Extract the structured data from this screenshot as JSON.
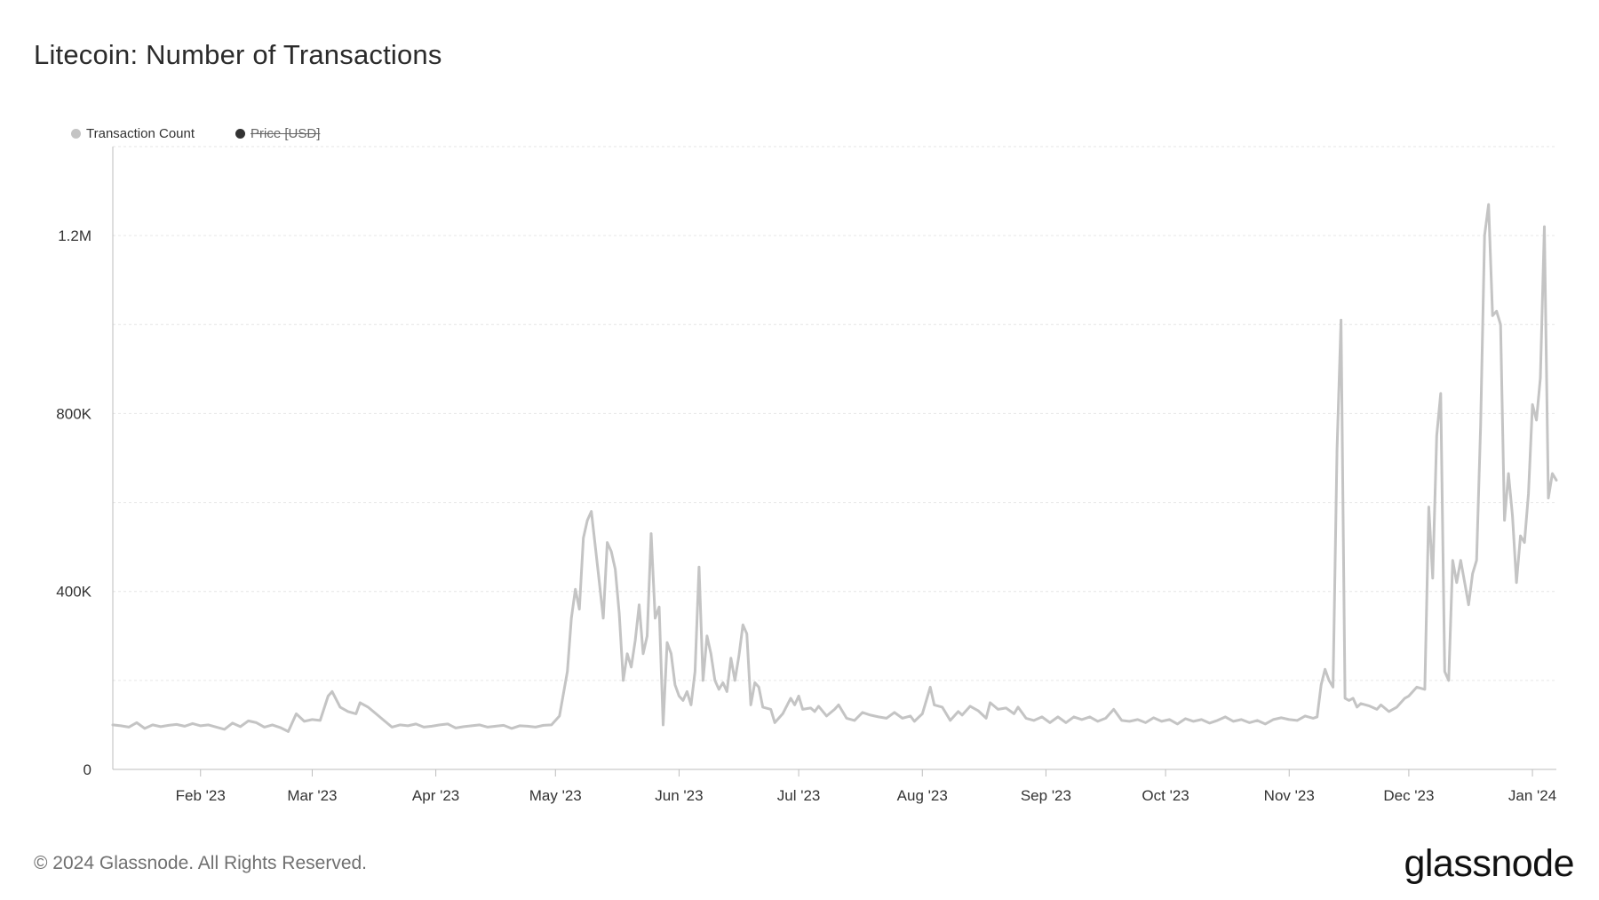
{
  "title": "Litecoin: Number of Transactions",
  "footer": "© 2024 Glassnode. All Rights Reserved.",
  "brand": "glassnode",
  "legend": [
    {
      "label": "Transaction Count",
      "color": "#c4c4c4",
      "active": true
    },
    {
      "label": "Price [USD]",
      "color": "#333333",
      "active": false
    }
  ],
  "chart_data": {
    "type": "line",
    "title": "Litecoin: Number of Transactions",
    "xlabel": "",
    "ylabel": "",
    "x_range": [
      "2023-01-10",
      "2024-01-07"
    ],
    "ylim": [
      0,
      1400000
    ],
    "y_ticks": [
      {
        "value": 0,
        "label": "0"
      },
      {
        "value": 400000,
        "label": "400K"
      },
      {
        "value": 800000,
        "label": "800K"
      },
      {
        "value": 1200000,
        "label": "1.2M"
      }
    ],
    "grid_values": [
      0,
      200000,
      400000,
      600000,
      800000,
      1000000,
      1200000,
      1400000
    ],
    "x_ticks": [
      {
        "date": "2023-02-01",
        "label": "Feb '23"
      },
      {
        "date": "2023-03-01",
        "label": "Mar '23"
      },
      {
        "date": "2023-04-01",
        "label": "Apr '23"
      },
      {
        "date": "2023-05-01",
        "label": "May '23"
      },
      {
        "date": "2023-06-01",
        "label": "Jun '23"
      },
      {
        "date": "2023-07-01",
        "label": "Jul '23"
      },
      {
        "date": "2023-08-01",
        "label": "Aug '23"
      },
      {
        "date": "2023-09-01",
        "label": "Sep '23"
      },
      {
        "date": "2023-10-01",
        "label": "Oct '23"
      },
      {
        "date": "2023-11-01",
        "label": "Nov '23"
      },
      {
        "date": "2023-12-01",
        "label": "Dec '23"
      },
      {
        "date": "2024-01-01",
        "label": "Jan '24"
      }
    ],
    "grid": true,
    "series": [
      {
        "name": "Transaction Count",
        "color": "#c4c4c4",
        "points": [
          [
            "2023-01-10",
            100000
          ],
          [
            "2023-01-12",
            98000
          ],
          [
            "2023-01-14",
            95000
          ],
          [
            "2023-01-16",
            105000
          ],
          [
            "2023-01-18",
            92000
          ],
          [
            "2023-01-20",
            100000
          ],
          [
            "2023-01-22",
            96000
          ],
          [
            "2023-01-24",
            99000
          ],
          [
            "2023-01-26",
            101000
          ],
          [
            "2023-01-28",
            97000
          ],
          [
            "2023-01-30",
            103000
          ],
          [
            "2023-02-01",
            98000
          ],
          [
            "2023-02-03",
            100000
          ],
          [
            "2023-02-05",
            95000
          ],
          [
            "2023-02-07",
            90000
          ],
          [
            "2023-02-09",
            104000
          ],
          [
            "2023-02-11",
            96000
          ],
          [
            "2023-02-13",
            109000
          ],
          [
            "2023-02-15",
            105000
          ],
          [
            "2023-02-17",
            95000
          ],
          [
            "2023-02-19",
            100000
          ],
          [
            "2023-02-21",
            94000
          ],
          [
            "2023-02-23",
            85000
          ],
          [
            "2023-02-25",
            125000
          ],
          [
            "2023-02-27",
            108000
          ],
          [
            "2023-03-01",
            112000
          ],
          [
            "2023-03-03",
            110000
          ],
          [
            "2023-03-05",
            165000
          ],
          [
            "2023-03-06",
            175000
          ],
          [
            "2023-03-08",
            140000
          ],
          [
            "2023-03-10",
            130000
          ],
          [
            "2023-03-12",
            125000
          ],
          [
            "2023-03-13",
            150000
          ],
          [
            "2023-03-15",
            140000
          ],
          [
            "2023-03-17",
            125000
          ],
          [
            "2023-03-19",
            110000
          ],
          [
            "2023-03-21",
            95000
          ],
          [
            "2023-03-23",
            100000
          ],
          [
            "2023-03-25",
            98000
          ],
          [
            "2023-03-27",
            102000
          ],
          [
            "2023-03-29",
            95000
          ],
          [
            "2023-03-31",
            97000
          ],
          [
            "2023-04-02",
            100000
          ],
          [
            "2023-04-04",
            102000
          ],
          [
            "2023-04-06",
            93000
          ],
          [
            "2023-04-08",
            96000
          ],
          [
            "2023-04-10",
            98000
          ],
          [
            "2023-04-12",
            100000
          ],
          [
            "2023-04-14",
            95000
          ],
          [
            "2023-04-16",
            97000
          ],
          [
            "2023-04-18",
            99000
          ],
          [
            "2023-04-20",
            92000
          ],
          [
            "2023-04-22",
            98000
          ],
          [
            "2023-04-24",
            97000
          ],
          [
            "2023-04-26",
            95000
          ],
          [
            "2023-04-28",
            99000
          ],
          [
            "2023-04-30",
            100000
          ],
          [
            "2023-05-02",
            120000
          ],
          [
            "2023-05-04",
            220000
          ],
          [
            "2023-05-05",
            340000
          ],
          [
            "2023-05-06",
            405000
          ],
          [
            "2023-05-07",
            360000
          ],
          [
            "2023-05-08",
            520000
          ],
          [
            "2023-05-09",
            560000
          ],
          [
            "2023-05-10",
            580000
          ],
          [
            "2023-05-11",
            500000
          ],
          [
            "2023-05-12",
            420000
          ],
          [
            "2023-05-13",
            340000
          ],
          [
            "2023-05-14",
            510000
          ],
          [
            "2023-05-15",
            490000
          ],
          [
            "2023-05-16",
            450000
          ],
          [
            "2023-05-17",
            350000
          ],
          [
            "2023-05-18",
            200000
          ],
          [
            "2023-05-19",
            260000
          ],
          [
            "2023-05-20",
            230000
          ],
          [
            "2023-05-21",
            290000
          ],
          [
            "2023-05-22",
            370000
          ],
          [
            "2023-05-23",
            260000
          ],
          [
            "2023-05-24",
            300000
          ],
          [
            "2023-05-25",
            530000
          ],
          [
            "2023-05-26",
            340000
          ],
          [
            "2023-05-27",
            365000
          ],
          [
            "2023-05-28",
            100000
          ],
          [
            "2023-05-29",
            285000
          ],
          [
            "2023-05-30",
            260000
          ],
          [
            "2023-05-31",
            190000
          ],
          [
            "2023-06-01",
            165000
          ],
          [
            "2023-06-02",
            155000
          ],
          [
            "2023-06-03",
            175000
          ],
          [
            "2023-06-04",
            145000
          ],
          [
            "2023-06-05",
            220000
          ],
          [
            "2023-06-06",
            455000
          ],
          [
            "2023-06-07",
            200000
          ],
          [
            "2023-06-08",
            300000
          ],
          [
            "2023-06-09",
            260000
          ],
          [
            "2023-06-10",
            200000
          ],
          [
            "2023-06-11",
            180000
          ],
          [
            "2023-06-12",
            195000
          ],
          [
            "2023-06-13",
            175000
          ],
          [
            "2023-06-14",
            250000
          ],
          [
            "2023-06-15",
            200000
          ],
          [
            "2023-06-16",
            255000
          ],
          [
            "2023-06-17",
            325000
          ],
          [
            "2023-06-18",
            305000
          ],
          [
            "2023-06-19",
            145000
          ],
          [
            "2023-06-20",
            195000
          ],
          [
            "2023-06-21",
            185000
          ],
          [
            "2023-06-22",
            140000
          ],
          [
            "2023-06-24",
            135000
          ],
          [
            "2023-06-25",
            105000
          ],
          [
            "2023-06-27",
            125000
          ],
          [
            "2023-06-29",
            160000
          ],
          [
            "2023-06-30",
            145000
          ],
          [
            "2023-07-01",
            165000
          ],
          [
            "2023-07-02",
            135000
          ],
          [
            "2023-07-04",
            138000
          ],
          [
            "2023-07-05",
            130000
          ],
          [
            "2023-07-06",
            142000
          ],
          [
            "2023-07-08",
            120000
          ],
          [
            "2023-07-10",
            135000
          ],
          [
            "2023-07-11",
            145000
          ],
          [
            "2023-07-13",
            115000
          ],
          [
            "2023-07-15",
            110000
          ],
          [
            "2023-07-17",
            128000
          ],
          [
            "2023-07-19",
            122000
          ],
          [
            "2023-07-21",
            118000
          ],
          [
            "2023-07-23",
            115000
          ],
          [
            "2023-07-25",
            128000
          ],
          [
            "2023-07-27",
            115000
          ],
          [
            "2023-07-29",
            120000
          ],
          [
            "2023-07-30",
            108000
          ],
          [
            "2023-08-01",
            125000
          ],
          [
            "2023-08-03",
            185000
          ],
          [
            "2023-08-04",
            145000
          ],
          [
            "2023-08-06",
            140000
          ],
          [
            "2023-08-08",
            110000
          ],
          [
            "2023-08-10",
            130000
          ],
          [
            "2023-08-11",
            122000
          ],
          [
            "2023-08-13",
            142000
          ],
          [
            "2023-08-15",
            132000
          ],
          [
            "2023-08-17",
            115000
          ],
          [
            "2023-08-18",
            150000
          ],
          [
            "2023-08-20",
            135000
          ],
          [
            "2023-08-22",
            138000
          ],
          [
            "2023-08-24",
            125000
          ],
          [
            "2023-08-25",
            140000
          ],
          [
            "2023-08-27",
            115000
          ],
          [
            "2023-08-29",
            110000
          ],
          [
            "2023-08-31",
            118000
          ],
          [
            "2023-09-02",
            105000
          ],
          [
            "2023-09-04",
            118000
          ],
          [
            "2023-09-06",
            105000
          ],
          [
            "2023-09-08",
            118000
          ],
          [
            "2023-09-10",
            112000
          ],
          [
            "2023-09-12",
            118000
          ],
          [
            "2023-09-14",
            108000
          ],
          [
            "2023-09-16",
            115000
          ],
          [
            "2023-09-18",
            135000
          ],
          [
            "2023-09-20",
            110000
          ],
          [
            "2023-09-22",
            108000
          ],
          [
            "2023-09-24",
            112000
          ],
          [
            "2023-09-26",
            105000
          ],
          [
            "2023-09-28",
            116000
          ],
          [
            "2023-09-30",
            108000
          ],
          [
            "2023-10-02",
            112000
          ],
          [
            "2023-10-04",
            102000
          ],
          [
            "2023-10-06",
            114000
          ],
          [
            "2023-10-08",
            108000
          ],
          [
            "2023-10-10",
            112000
          ],
          [
            "2023-10-12",
            104000
          ],
          [
            "2023-10-14",
            110000
          ],
          [
            "2023-10-16",
            118000
          ],
          [
            "2023-10-18",
            108000
          ],
          [
            "2023-10-20",
            112000
          ],
          [
            "2023-10-22",
            105000
          ],
          [
            "2023-10-24",
            110000
          ],
          [
            "2023-10-26",
            102000
          ],
          [
            "2023-10-28",
            112000
          ],
          [
            "2023-10-30",
            116000
          ],
          [
            "2023-11-01",
            112000
          ],
          [
            "2023-11-03",
            110000
          ],
          [
            "2023-11-05",
            120000
          ],
          [
            "2023-11-07",
            115000
          ],
          [
            "2023-11-08",
            118000
          ],
          [
            "2023-11-09",
            190000
          ],
          [
            "2023-11-10",
            225000
          ],
          [
            "2023-11-11",
            200000
          ],
          [
            "2023-11-12",
            185000
          ],
          [
            "2023-11-13",
            720000
          ],
          [
            "2023-11-14",
            1010000
          ],
          [
            "2023-11-15",
            160000
          ],
          [
            "2023-11-16",
            155000
          ],
          [
            "2023-11-17",
            160000
          ],
          [
            "2023-11-18",
            140000
          ],
          [
            "2023-11-19",
            148000
          ],
          [
            "2023-11-21",
            143000
          ],
          [
            "2023-11-23",
            135000
          ],
          [
            "2023-11-24",
            145000
          ],
          [
            "2023-11-26",
            130000
          ],
          [
            "2023-11-28",
            140000
          ],
          [
            "2023-11-30",
            160000
          ],
          [
            "2023-12-01",
            165000
          ],
          [
            "2023-12-03",
            185000
          ],
          [
            "2023-12-05",
            180000
          ],
          [
            "2023-12-06",
            590000
          ],
          [
            "2023-12-07",
            430000
          ],
          [
            "2023-12-08",
            750000
          ],
          [
            "2023-12-09",
            845000
          ],
          [
            "2023-12-10",
            220000
          ],
          [
            "2023-12-11",
            200000
          ],
          [
            "2023-12-12",
            470000
          ],
          [
            "2023-12-13",
            420000
          ],
          [
            "2023-12-14",
            470000
          ],
          [
            "2023-12-15",
            420000
          ],
          [
            "2023-12-16",
            370000
          ],
          [
            "2023-12-17",
            440000
          ],
          [
            "2023-12-18",
            470000
          ],
          [
            "2023-12-19",
            770000
          ],
          [
            "2023-12-20",
            1200000
          ],
          [
            "2023-12-21",
            1270000
          ],
          [
            "2023-12-22",
            1020000
          ],
          [
            "2023-12-23",
            1030000
          ],
          [
            "2023-12-24",
            1000000
          ],
          [
            "2023-12-25",
            560000
          ],
          [
            "2023-12-26",
            665000
          ],
          [
            "2023-12-27",
            570000
          ],
          [
            "2023-12-28",
            420000
          ],
          [
            "2023-12-29",
            525000
          ],
          [
            "2023-12-30",
            510000
          ],
          [
            "2023-12-31",
            620000
          ],
          [
            "2024-01-01",
            820000
          ],
          [
            "2024-01-02",
            785000
          ],
          [
            "2024-01-03",
            880000
          ],
          [
            "2024-01-04",
            1220000
          ],
          [
            "2024-01-05",
            610000
          ],
          [
            "2024-01-06",
            665000
          ],
          [
            "2024-01-07",
            650000
          ]
        ]
      }
    ]
  }
}
